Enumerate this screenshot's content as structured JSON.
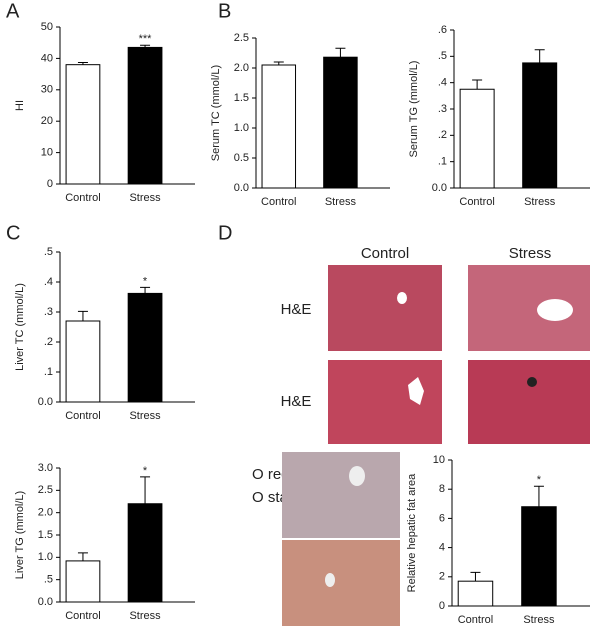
{
  "panel_labels": [
    "A",
    "B",
    "C",
    "D"
  ],
  "histology": {
    "columns": [
      "Control",
      "Stress"
    ],
    "rows": [
      "H&E",
      "H&E"
    ],
    "stain_label": [
      "O red",
      "O stain"
    ]
  },
  "chart_data": [
    {
      "type": "bar",
      "ylabel": "HI",
      "categories": [
        "Control",
        "Stress"
      ],
      "values": [
        38,
        43.5
      ],
      "errors": [
        0.7,
        0.7
      ],
      "colors": [
        "#ffffff",
        "#000000"
      ],
      "significance": [
        null,
        "***"
      ],
      "ylim": [
        0,
        50
      ],
      "yticks": [
        0,
        10,
        20,
        30,
        40,
        50
      ]
    },
    {
      "type": "bar",
      "ylabel": "Serum TC (mmol/L)",
      "categories": [
        "Control",
        "Stress"
      ],
      "values": [
        2.05,
        2.18
      ],
      "errors": [
        0.05,
        0.15
      ],
      "colors": [
        "#ffffff",
        "#000000"
      ],
      "ylim": [
        0,
        2.5
      ],
      "yticks": [
        {
          "value": 0,
          "label": "0.0"
        },
        0.5,
        {
          "value": 1,
          "label": "1.0"
        },
        1.5,
        {
          "value": 2,
          "label": "2.0"
        },
        2.5
      ]
    },
    {
      "type": "bar",
      "ylabel": "Serum TG (mmol/L)",
      "categories": [
        "Control",
        "Stress"
      ],
      "values": [
        0.375,
        0.475
      ],
      "errors": [
        0.035,
        0.05
      ],
      "colors": [
        "#ffffff",
        "#000000"
      ],
      "ylim": [
        0,
        0.6
      ],
      "yticks": [
        {
          "value": 0,
          "label": "0.0"
        },
        {
          "value": 0.1,
          "label": ".1"
        },
        {
          "value": 0.2,
          "label": ".2"
        },
        {
          "value": 0.3,
          "label": ".3"
        },
        {
          "value": 0.4,
          "label": ".4"
        },
        {
          "value": 0.5,
          "label": ".5"
        },
        {
          "value": 0.6,
          "label": ".6"
        }
      ]
    },
    {
      "type": "bar",
      "ylabel": "Liver TC (mmol/L)",
      "categories": [
        "Control",
        "Stress"
      ],
      "values": [
        0.27,
        0.362
      ],
      "errors": [
        0.032,
        0.02
      ],
      "colors": [
        "#ffffff",
        "#000000"
      ],
      "significance": [
        null,
        "*"
      ],
      "ylim": [
        0,
        0.5
      ],
      "yticks": [
        {
          "value": 0,
          "label": "0.0"
        },
        {
          "value": 0.1,
          "label": ".1"
        },
        {
          "value": 0.2,
          "label": ".2"
        },
        {
          "value": 0.3,
          "label": ".3"
        },
        {
          "value": 0.4,
          "label": ".4"
        },
        {
          "value": 0.5,
          "label": ".5"
        }
      ]
    },
    {
      "type": "bar",
      "ylabel": "Liver TG (mmol/L)",
      "categories": [
        "Control",
        "Stress"
      ],
      "values": [
        0.92,
        2.2
      ],
      "errors": [
        0.18,
        0.6
      ],
      "colors": [
        "#ffffff",
        "#000000"
      ],
      "significance": [
        null,
        "*"
      ],
      "ylim": [
        0,
        3
      ],
      "yticks": [
        {
          "value": 0,
          "label": "0.0"
        },
        {
          "value": 0.5,
          "label": ".5"
        },
        {
          "value": 1,
          "label": "1.0"
        },
        1.5,
        {
          "value": 2,
          "label": "2.0"
        },
        2.5,
        {
          "value": 3,
          "label": "3.0"
        }
      ]
    },
    {
      "type": "bar",
      "ylabel": "Relative hepatic fat area",
      "categories": [
        "Control",
        "Stress"
      ],
      "values": [
        1.7,
        6.8
      ],
      "errors": [
        0.6,
        1.4
      ],
      "colors": [
        "#ffffff",
        "#000000"
      ],
      "significance": [
        null,
        "*"
      ],
      "ylim": [
        0,
        10
      ],
      "yticks": [
        0,
        2,
        4,
        6,
        8,
        10
      ]
    }
  ]
}
